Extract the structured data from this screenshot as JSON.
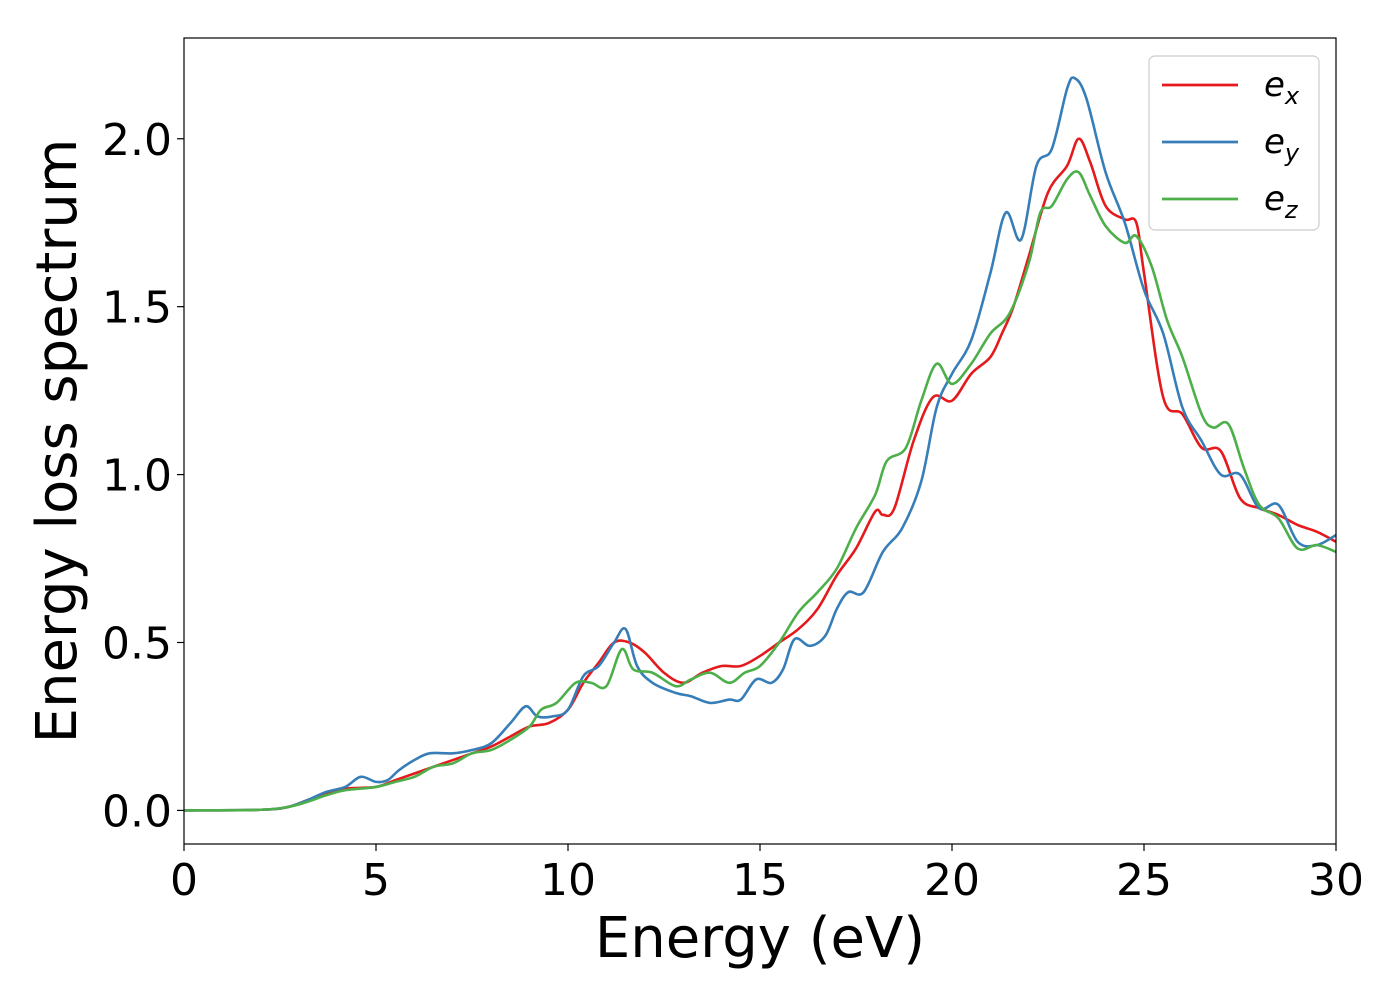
{
  "chart_data": {
    "type": "line",
    "xlabel": "Energy (eV)",
    "ylabel": "Energy loss spectrum",
    "xlim": [
      0,
      30
    ],
    "ylim": [
      -0.1,
      2.3
    ],
    "xticks": [
      0,
      5,
      10,
      15,
      20,
      25,
      30
    ],
    "xtick_labels": [
      "0",
      "5",
      "10",
      "15",
      "20",
      "25",
      "30"
    ],
    "yticks": [
      0.0,
      0.5,
      1.0,
      1.5,
      2.0
    ],
    "ytick_labels": [
      "0.0",
      "0.5",
      "1.0",
      "1.5",
      "2.0"
    ],
    "grid": false,
    "legend_position": "top-right",
    "series": [
      {
        "name": "e_x",
        "legend_base": "e",
        "legend_sub": "x",
        "color": "#e41a1c",
        "x": [
          0,
          2,
          2.7,
          3.2,
          3.7,
          4.2,
          5,
          5.5,
          6,
          6.5,
          7,
          7.5,
          8,
          8.5,
          9,
          9.5,
          10,
          10.4,
          10.8,
          11.2,
          11.6,
          12,
          12.5,
          13,
          13.5,
          14,
          14.5,
          15,
          15.5,
          16,
          16.5,
          17,
          17.5,
          18,
          18.2,
          18.5,
          19,
          19.5,
          20,
          20.5,
          21,
          21.3,
          21.6,
          22,
          22.5,
          23,
          23.3,
          23.6,
          24,
          24.5,
          24.8,
          25,
          25.5,
          26,
          26.5,
          27,
          27.5,
          28,
          28.5,
          29,
          29.5,
          30
        ],
        "y": [
          0.0,
          0.002,
          0.01,
          0.03,
          0.05,
          0.065,
          0.07,
          0.09,
          0.11,
          0.13,
          0.15,
          0.17,
          0.19,
          0.22,
          0.25,
          0.26,
          0.3,
          0.38,
          0.44,
          0.5,
          0.5,
          0.47,
          0.41,
          0.38,
          0.41,
          0.43,
          0.43,
          0.46,
          0.5,
          0.54,
          0.6,
          0.7,
          0.78,
          0.89,
          0.88,
          0.9,
          1.1,
          1.23,
          1.22,
          1.3,
          1.35,
          1.42,
          1.5,
          1.65,
          1.84,
          1.92,
          2.0,
          1.93,
          1.8,
          1.76,
          1.75,
          1.6,
          1.23,
          1.18,
          1.08,
          1.07,
          0.93,
          0.9,
          0.88,
          0.85,
          0.83,
          0.8
        ]
      },
      {
        "name": "e_y",
        "legend_base": "e",
        "legend_sub": "y",
        "color": "#377eb8",
        "x": [
          0,
          2,
          2.7,
          3.2,
          3.7,
          4.2,
          4.6,
          5,
          5.3,
          5.6,
          6,
          6.4,
          7,
          7.5,
          8,
          8.5,
          8.9,
          9.2,
          9.6,
          10,
          10.4,
          10.8,
          11.2,
          11.5,
          11.8,
          12.2,
          12.8,
          13.2,
          13.7,
          14.2,
          14.5,
          14.9,
          15.3,
          15.6,
          15.9,
          16.3,
          16.7,
          17,
          17.3,
          17.7,
          18.2,
          18.7,
          19.2,
          19.6,
          20,
          20.5,
          21,
          21.4,
          21.8,
          22.2,
          22.6,
          23,
          23.2,
          23.5,
          24,
          24.5,
          25,
          25.5,
          26,
          26.5,
          27,
          27.5,
          28,
          28.5,
          29,
          29.5,
          30
        ],
        "y": [
          0.0,
          0.002,
          0.01,
          0.03,
          0.055,
          0.07,
          0.1,
          0.085,
          0.09,
          0.12,
          0.15,
          0.17,
          0.17,
          0.18,
          0.2,
          0.26,
          0.31,
          0.28,
          0.28,
          0.3,
          0.4,
          0.43,
          0.5,
          0.54,
          0.43,
          0.38,
          0.35,
          0.34,
          0.32,
          0.33,
          0.33,
          0.39,
          0.38,
          0.42,
          0.51,
          0.49,
          0.52,
          0.6,
          0.65,
          0.65,
          0.77,
          0.84,
          0.98,
          1.2,
          1.3,
          1.4,
          1.6,
          1.78,
          1.7,
          1.92,
          1.97,
          2.15,
          2.18,
          2.12,
          1.9,
          1.75,
          1.55,
          1.42,
          1.2,
          1.1,
          1.0,
          1.0,
          0.9,
          0.91,
          0.8,
          0.79,
          0.82
        ]
      },
      {
        "name": "e_z",
        "legend_base": "e",
        "legend_sub": "z",
        "color": "#4daf4a",
        "x": [
          0,
          2,
          2.7,
          3.2,
          3.7,
          4.2,
          5,
          5.5,
          6,
          6.5,
          7,
          7.5,
          8,
          8.5,
          9,
          9.3,
          9.7,
          10.2,
          10.6,
          11,
          11.4,
          11.7,
          12.2,
          12.8,
          13.2,
          13.7,
          14.2,
          14.6,
          15,
          15.5,
          16,
          16.5,
          17,
          17.5,
          18,
          18.3,
          18.8,
          19.2,
          19.6,
          20,
          20.5,
          21,
          21.5,
          22,
          22.3,
          22.6,
          23,
          23.3,
          23.6,
          24,
          24.5,
          24.8,
          25.2,
          25.6,
          26,
          26.5,
          26.8,
          27.2,
          27.6,
          28,
          28.5,
          29,
          29.5,
          30
        ],
        "y": [
          0.0,
          0.002,
          0.01,
          0.025,
          0.045,
          0.06,
          0.07,
          0.085,
          0.1,
          0.13,
          0.14,
          0.17,
          0.18,
          0.21,
          0.25,
          0.3,
          0.32,
          0.38,
          0.38,
          0.37,
          0.48,
          0.42,
          0.41,
          0.37,
          0.39,
          0.41,
          0.38,
          0.41,
          0.43,
          0.5,
          0.59,
          0.65,
          0.72,
          0.84,
          0.94,
          1.04,
          1.08,
          1.22,
          1.33,
          1.27,
          1.33,
          1.42,
          1.48,
          1.63,
          1.78,
          1.8,
          1.88,
          1.9,
          1.83,
          1.74,
          1.69,
          1.71,
          1.62,
          1.46,
          1.35,
          1.18,
          1.14,
          1.15,
          1.02,
          0.91,
          0.87,
          0.78,
          0.79,
          0.77
        ]
      }
    ]
  }
}
